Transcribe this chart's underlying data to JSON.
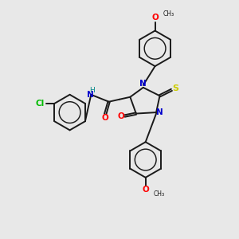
{
  "bg_color": "#e8e8e8",
  "atom_colors": {
    "N": "#0000cc",
    "O": "#ff0000",
    "S": "#cccc00",
    "Cl": "#00bb00",
    "H": "#008888"
  },
  "bond_color": "#1a1a1a",
  "bond_width": 1.4
}
